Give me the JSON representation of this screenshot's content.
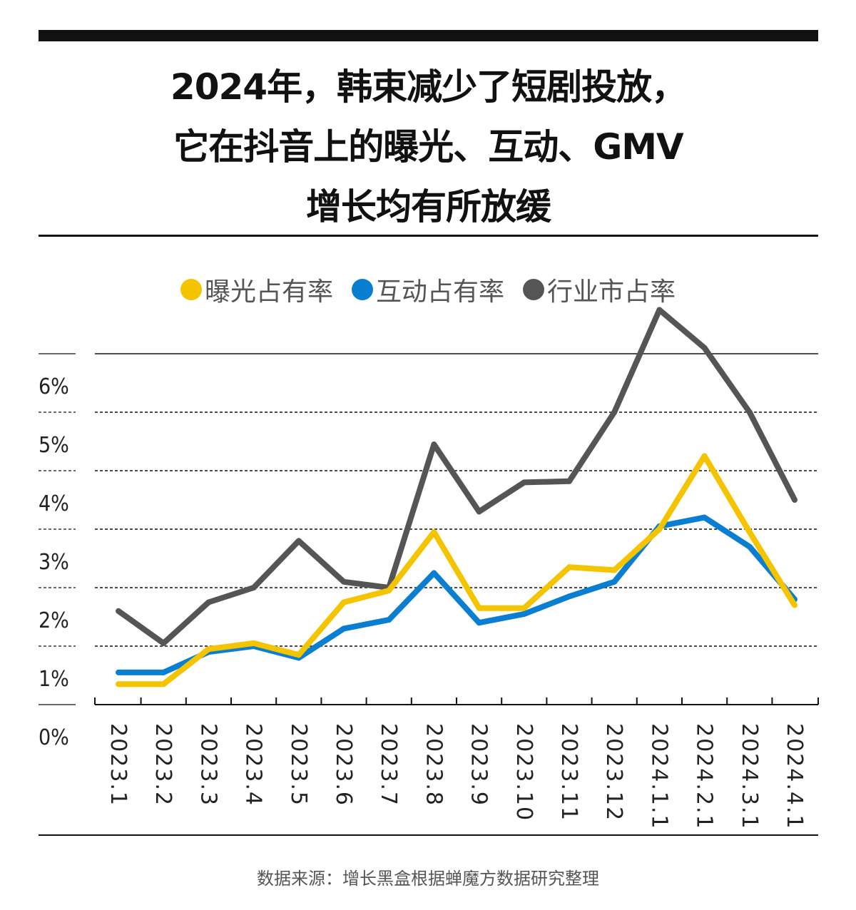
{
  "title_lines": [
    "2024年，韩束减少了短剧投放，",
    "它在抖音上的曝光、互动、GMV",
    "增长均有所放缓"
  ],
  "source": "数据来源：增长黑盒根据蝉魔方数据研究整理",
  "chart_data": {
    "type": "line",
    "categories": [
      "2023.1",
      "2023.2",
      "2023.3",
      "2023.4",
      "2023.5",
      "2023.6",
      "2023.7",
      "2023.8",
      "2023.9",
      "2023.10",
      "2023.11",
      "2023.12",
      "2024.1.1",
      "2024.2.1",
      "2024.3.1",
      "2024.4.1"
    ],
    "y_tick_labels": [
      "0%",
      "1%",
      "2%",
      "3%",
      "4%",
      "5%",
      "6%"
    ],
    "ylim": [
      0,
      6.2
    ],
    "grid": true,
    "legend_position": "top-center",
    "series": [
      {
        "name": "曝光占有率",
        "color": "#f5c400",
        "values": [
          0.35,
          0.35,
          0.95,
          1.05,
          0.85,
          1.75,
          1.95,
          2.95,
          1.65,
          1.65,
          2.35,
          2.3,
          3.0,
          4.25,
          2.95,
          1.7
        ]
      },
      {
        "name": "互动占有率",
        "color": "#0a7fd1",
        "values": [
          0.55,
          0.55,
          0.9,
          1.0,
          0.8,
          1.3,
          1.45,
          2.25,
          1.4,
          1.55,
          1.85,
          2.1,
          3.05,
          3.2,
          2.7,
          1.8
        ]
      },
      {
        "name": "行业市占率",
        "color": "#555555",
        "values": [
          1.6,
          1.05,
          1.75,
          2.0,
          2.8,
          2.1,
          2.0,
          4.45,
          3.3,
          3.8,
          3.82,
          5.0,
          6.75,
          6.1,
          5.0,
          3.5
        ]
      }
    ]
  }
}
